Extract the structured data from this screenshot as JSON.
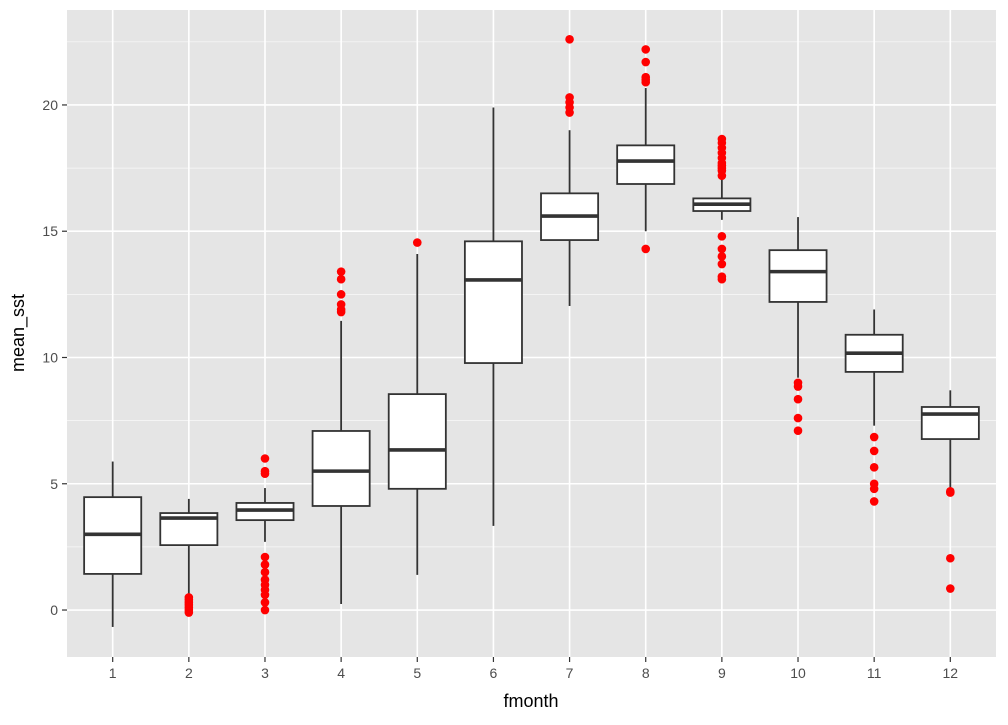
{
  "chart_data": {
    "type": "boxplot",
    "title": "",
    "xlabel": "fmonth",
    "ylabel": "mean_sst",
    "ylim": [
      -1.86,
      23.76
    ],
    "yticks": [
      0,
      5,
      10,
      15,
      20
    ],
    "grid": true,
    "colors": {
      "panel": "#E5E5E5",
      "grid": "#FFFFFF",
      "box_fill": "#FFFFFF",
      "box_line": "#333333",
      "outlier": "#FF0000",
      "tick_text": "#4D4D4D"
    },
    "categories": [
      "1",
      "2",
      "3",
      "4",
      "5",
      "6",
      "7",
      "8",
      "9",
      "10",
      "11",
      "12"
    ],
    "boxes": [
      {
        "lower": -0.67,
        "q1": 1.43,
        "median": 3.0,
        "q3": 4.47,
        "upper": 5.88,
        "outliers": []
      },
      {
        "lower": 0.55,
        "q1": 2.57,
        "median": 3.64,
        "q3": 3.84,
        "upper": 4.4,
        "outliers": [
          0.5,
          0.4,
          0.3,
          0.2,
          0.1,
          0.0,
          -0.1
        ]
      },
      {
        "lower": 2.7,
        "q1": 3.56,
        "median": 3.96,
        "q3": 4.24,
        "upper": 4.83,
        "outliers": [
          6.0,
          5.5,
          5.4,
          2.1,
          1.8,
          1.5,
          1.2,
          1.0,
          0.8,
          0.6,
          0.3,
          0.0
        ]
      },
      {
        "lower": 0.24,
        "q1": 4.12,
        "median": 5.5,
        "q3": 7.09,
        "upper": 11.45,
        "outliers": [
          13.4,
          13.1,
          12.5,
          12.1,
          11.9,
          11.8
        ]
      },
      {
        "lower": 1.39,
        "q1": 4.8,
        "median": 6.34,
        "q3": 8.55,
        "upper": 14.1,
        "outliers": [
          14.55
        ]
      },
      {
        "lower": 3.33,
        "q1": 9.78,
        "median": 13.07,
        "q3": 14.6,
        "upper": 19.9,
        "outliers": []
      },
      {
        "lower": 12.04,
        "q1": 14.65,
        "median": 15.6,
        "q3": 16.5,
        "upper": 19.0,
        "outliers": [
          22.6,
          20.3,
          20.1,
          19.9,
          19.7
        ]
      },
      {
        "lower": 15.0,
        "q1": 16.87,
        "median": 17.78,
        "q3": 18.4,
        "upper": 20.67,
        "outliers": [
          22.2,
          21.7,
          21.1,
          21.0,
          20.9,
          14.3
        ]
      },
      {
        "lower": 15.45,
        "q1": 15.8,
        "median": 16.07,
        "q3": 16.3,
        "upper": 17.1,
        "outliers": [
          18.65,
          18.5,
          18.3,
          18.1,
          17.9,
          17.7,
          17.6,
          17.5,
          17.4,
          17.2,
          14.8,
          14.3,
          14.0,
          13.7,
          13.2,
          13.1
        ]
      },
      {
        "lower": 9.2,
        "q1": 12.2,
        "median": 13.4,
        "q3": 14.25,
        "upper": 15.56,
        "outliers": [
          9.0,
          8.85,
          8.35,
          7.6,
          7.1
        ]
      },
      {
        "lower": 7.3,
        "q1": 9.43,
        "median": 10.17,
        "q3": 10.9,
        "upper": 11.9,
        "outliers": [
          6.85,
          6.3,
          5.65,
          5.0,
          4.8,
          4.3
        ]
      },
      {
        "lower": 4.8,
        "q1": 6.77,
        "median": 7.76,
        "q3": 8.04,
        "upper": 8.7,
        "outliers": [
          4.7,
          4.65,
          2.05,
          0.85
        ]
      }
    ]
  }
}
